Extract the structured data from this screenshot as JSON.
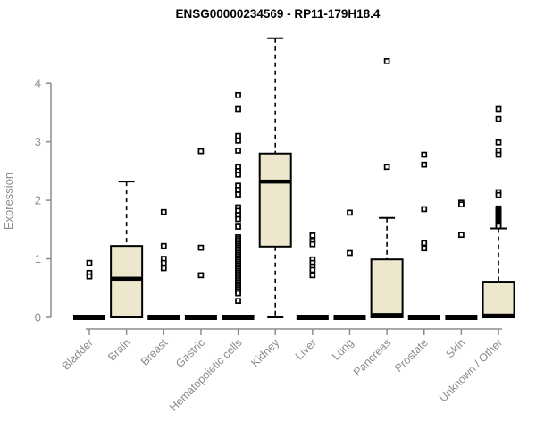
{
  "colors": {
    "box_fill": "#EDE8CD",
    "box_border": "#000000",
    "median": "#000000",
    "axis": "#8C8C8C",
    "tick_label": "#8C8C8C",
    "title": "#000000",
    "background": "#FFFFFF"
  },
  "chart_data": {
    "type": "boxplot",
    "title": "ENSG00000234569 - RP11-179H18.4",
    "xlabel": "",
    "ylabel": "Expression",
    "ylim": [
      0,
      4.8
    ],
    "yticks": [
      0,
      1,
      2,
      3,
      4
    ],
    "grid": false,
    "legend": "none",
    "categories": [
      "Bladder",
      "Brain",
      "Breast",
      "Gastric",
      "Hematopoietic cells",
      "Kidney",
      "Liver",
      "Lung",
      "Pancreas",
      "Prostate",
      "Skin",
      "Unknown / Other"
    ],
    "boxes": [
      {
        "name": "Bladder",
        "collapsed": true,
        "low": 0,
        "q1": 0,
        "median": 0,
        "q3": 0,
        "high": 0,
        "outliers": [
          0.93,
          0.76,
          0.7
        ]
      },
      {
        "name": "Brain",
        "collapsed": false,
        "low": 0,
        "q1": 0,
        "median": 0.66,
        "q3": 1.22,
        "high": 2.32,
        "outliers": []
      },
      {
        "name": "Breast",
        "collapsed": true,
        "low": 0,
        "q1": 0,
        "median": 0,
        "q3": 0,
        "high": 0,
        "outliers": [
          1.8,
          1.22,
          1.0,
          0.93,
          0.84
        ]
      },
      {
        "name": "Gastric",
        "collapsed": true,
        "low": 0,
        "q1": 0,
        "median": 0,
        "q3": 0,
        "high": 0,
        "outliers": [
          2.84,
          1.19,
          0.72
        ]
      },
      {
        "name": "Hematopoietic cells",
        "collapsed": true,
        "low": 0,
        "q1": 0,
        "median": 0,
        "q3": 0,
        "high": 0,
        "outliers": [
          3.8,
          3.56,
          3.1,
          3.02,
          2.85,
          2.57,
          2.5,
          2.44,
          2.25,
          2.18,
          2.1,
          1.88,
          1.82,
          1.75,
          1.68,
          1.55,
          1.37,
          1.34,
          1.31,
          1.28,
          1.25,
          1.22,
          1.19,
          1.16,
          1.13,
          1.1,
          1.07,
          1.04,
          1.01,
          0.98,
          0.95,
          0.92,
          0.89,
          0.86,
          0.83,
          0.8,
          0.77,
          0.74,
          0.71,
          0.68,
          0.65,
          0.62,
          0.59,
          0.56,
          0.53,
          0.5,
          0.47,
          0.44,
          0.41,
          0.28
        ]
      },
      {
        "name": "Kidney",
        "collapsed": false,
        "low": 0,
        "q1": 1.21,
        "median": 2.32,
        "q3": 2.8,
        "high": 4.77,
        "outliers": []
      },
      {
        "name": "Liver",
        "collapsed": true,
        "low": 0,
        "q1": 0,
        "median": 0,
        "q3": 0,
        "high": 0,
        "outliers": [
          1.4,
          1.31,
          1.25,
          0.99,
          0.93,
          0.87,
          0.81,
          0.72
        ]
      },
      {
        "name": "Lung",
        "collapsed": true,
        "low": 0,
        "q1": 0,
        "median": 0,
        "q3": 0,
        "high": 0,
        "outliers": [
          1.79,
          1.1
        ]
      },
      {
        "name": "Pancreas",
        "collapsed": false,
        "low": 0,
        "q1": 0,
        "median": 0.04,
        "q3": 0.99,
        "high": 1.7,
        "outliers": [
          4.38,
          2.57
        ]
      },
      {
        "name": "Prostate",
        "collapsed": true,
        "low": 0,
        "q1": 0,
        "median": 0,
        "q3": 0,
        "high": 0,
        "outliers": [
          2.78,
          2.61,
          1.85,
          1.27,
          1.18
        ]
      },
      {
        "name": "Skin",
        "collapsed": true,
        "low": 0,
        "q1": 0,
        "median": 0,
        "q3": 0,
        "high": 0,
        "outliers": [
          1.96,
          1.93,
          1.41
        ]
      },
      {
        "name": "Unknown / Other",
        "collapsed": false,
        "low": 0,
        "q1": 0,
        "median": 0.03,
        "q3": 0.61,
        "high": 1.52,
        "outliers": [
          3.56,
          3.39,
          2.99,
          2.85,
          2.78,
          2.14,
          2.09,
          1.86,
          1.84,
          1.82,
          1.8,
          1.78,
          1.76,
          1.74,
          1.72,
          1.7,
          1.68,
          1.66,
          1.64,
          1.62,
          1.6,
          1.58,
          1.56
        ]
      }
    ]
  }
}
